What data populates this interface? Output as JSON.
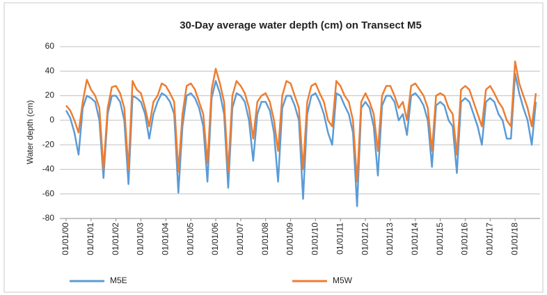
{
  "chart_data": {
    "type": "line",
    "title": "30-Day average water depth (cm) on Transect M5",
    "y_label": "Water depth (cm)",
    "x": [
      "01/01/00",
      "03/01/00",
      "05/01/00",
      "07/01/00",
      "09/01/00",
      "11/01/00",
      "01/01/01",
      "03/01/01",
      "05/01/01",
      "07/01/01",
      "09/01/01",
      "11/01/01",
      "01/01/02",
      "03/01/02",
      "05/01/02",
      "07/01/02",
      "09/01/02",
      "11/01/02",
      "01/01/03",
      "03/01/03",
      "05/01/03",
      "07/01/03",
      "09/01/03",
      "11/01/03",
      "01/01/04",
      "03/01/04",
      "05/01/04",
      "07/01/04",
      "09/01/04",
      "11/01/04",
      "01/01/05",
      "03/01/05",
      "05/01/05",
      "07/01/05",
      "09/01/05",
      "11/01/05",
      "01/01/06",
      "03/01/06",
      "05/01/06",
      "07/01/06",
      "09/01/06",
      "11/01/06",
      "01/01/07",
      "03/01/07",
      "05/01/07",
      "07/01/07",
      "09/01/07",
      "11/01/07",
      "01/01/08",
      "03/01/08",
      "05/01/08",
      "07/01/08",
      "09/01/08",
      "11/01/08",
      "01/01/09",
      "03/01/09",
      "05/01/09",
      "07/01/09",
      "09/01/09",
      "11/01/09",
      "01/01/10",
      "03/01/10",
      "05/01/10",
      "07/01/10",
      "09/01/10",
      "11/01/10",
      "01/01/11",
      "03/01/11",
      "05/01/11",
      "07/01/11",
      "09/01/11",
      "11/01/11",
      "01/01/12",
      "03/01/12",
      "05/01/12",
      "07/01/12",
      "09/01/12",
      "11/01/12",
      "01/01/13",
      "03/01/13",
      "05/01/13",
      "07/01/13",
      "09/01/13",
      "11/01/13",
      "01/01/14",
      "03/01/14",
      "05/01/14",
      "07/01/14",
      "09/01/14",
      "11/01/14",
      "01/01/15",
      "03/01/15",
      "05/01/15",
      "07/01/15",
      "09/01/15",
      "11/01/15",
      "01/01/16",
      "03/01/16",
      "05/01/16",
      "07/01/16",
      "09/01/16",
      "11/01/16",
      "01/01/17",
      "03/01/17",
      "05/01/17",
      "07/01/17",
      "09/01/17",
      "11/01/17",
      "01/01/18",
      "03/01/18",
      "05/01/18",
      "07/01/18",
      "09/01/18",
      "11/01/18"
    ],
    "series": [
      {
        "name": "M5E",
        "color": "#5b9bd5",
        "values": [
          8,
          2,
          -10,
          -28,
          10,
          20,
          18,
          15,
          0,
          -47,
          5,
          20,
          20,
          15,
          0,
          -52,
          20,
          18,
          15,
          5,
          -15,
          5,
          15,
          22,
          20,
          15,
          5,
          -59,
          -5,
          20,
          22,
          18,
          10,
          -5,
          -50,
          18,
          32,
          22,
          5,
          -55,
          10,
          22,
          20,
          15,
          0,
          -33,
          5,
          15,
          15,
          8,
          -10,
          -50,
          10,
          20,
          20,
          12,
          0,
          -64,
          5,
          20,
          22,
          15,
          5,
          -10,
          -20,
          22,
          20,
          12,
          5,
          -10,
          -70,
          10,
          15,
          10,
          -5,
          -45,
          12,
          20,
          20,
          15,
          0,
          5,
          -12,
          20,
          22,
          18,
          12,
          0,
          -38,
          12,
          15,
          12,
          0,
          -5,
          -43,
          15,
          18,
          15,
          5,
          -5,
          -20,
          15,
          18,
          15,
          5,
          0,
          -15,
          -15,
          38,
          22,
          10,
          0,
          -20,
          15
        ]
      },
      {
        "name": "M5W",
        "color": "#ed7d31",
        "values": [
          12,
          8,
          0,
          -10,
          15,
          33,
          25,
          20,
          10,
          -40,
          10,
          27,
          28,
          22,
          10,
          -40,
          32,
          25,
          22,
          10,
          -5,
          15,
          20,
          30,
          28,
          22,
          15,
          -42,
          5,
          28,
          30,
          25,
          15,
          5,
          -35,
          25,
          42,
          30,
          15,
          -42,
          20,
          32,
          28,
          22,
          10,
          -15,
          15,
          20,
          22,
          15,
          0,
          -25,
          20,
          32,
          30,
          20,
          10,
          -40,
          15,
          28,
          30,
          22,
          15,
          0,
          -5,
          32,
          28,
          20,
          15,
          0,
          -50,
          15,
          22,
          15,
          5,
          -25,
          20,
          28,
          28,
          20,
          10,
          15,
          0,
          28,
          30,
          25,
          20,
          10,
          -25,
          20,
          22,
          20,
          10,
          5,
          -28,
          25,
          28,
          25,
          15,
          5,
          -5,
          25,
          28,
          22,
          15,
          10,
          0,
          -5,
          48,
          30,
          20,
          10,
          -5,
          22
        ]
      }
    ],
    "xlim": [
      "10/01/99",
      "01/01/19"
    ],
    "xticks": [
      "01/01/00",
      "01/01/01",
      "01/01/02",
      "01/01/03",
      "01/01/04",
      "01/01/05",
      "01/01/06",
      "01/01/07",
      "01/01/08",
      "01/01/09",
      "01/01/10",
      "01/01/11",
      "01/01/12",
      "01/01/13",
      "01/01/14",
      "01/01/15",
      "01/01/16",
      "01/01/17",
      "01/01/18"
    ],
    "ylim": [
      -80,
      60
    ],
    "yticks": [
      -80,
      -60,
      -40,
      -20,
      0,
      20,
      40,
      60
    ],
    "grid": true,
    "legend": "bottom"
  }
}
